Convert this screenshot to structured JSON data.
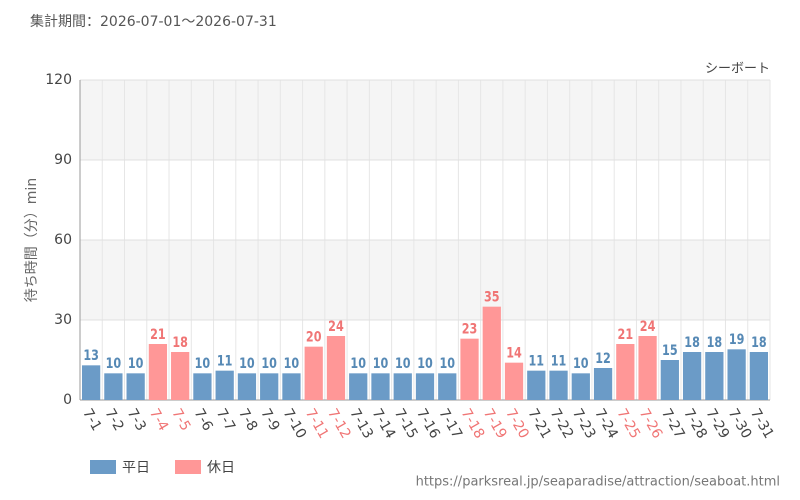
{
  "chart_data": {
    "type": "bar",
    "title": "集計期間：2026-07-01～2026-07-31",
    "subtitle": "シーボート",
    "ylabel": "待ち時間（分）min",
    "source": "https://parksreal.jp/seaparadise/attraction/seaboat.html",
    "categories": [
      "7-1",
      "7-2",
      "7-3",
      "7-4",
      "7-5",
      "7-6",
      "7-7",
      "7-8",
      "7-9",
      "7-10",
      "7-11",
      "7-12",
      "7-13",
      "7-14",
      "7-15",
      "7-16",
      "7-17",
      "7-18",
      "7-19",
      "7-20",
      "7-21",
      "7-22",
      "7-23",
      "7-24",
      "7-25",
      "7-26",
      "7-27",
      "7-28",
      "7-29",
      "7-30",
      "7-31"
    ],
    "series": [
      {
        "name": "平日",
        "color": "#6b9bc7",
        "label_color": "#5689b5",
        "values": [
          13,
          10,
          10,
          null,
          null,
          10,
          11,
          10,
          10,
          10,
          null,
          null,
          10,
          10,
          10,
          10,
          10,
          null,
          null,
          null,
          11,
          11,
          10,
          12,
          null,
          null,
          15,
          18,
          18,
          19,
          18
        ]
      },
      {
        "name": "休日",
        "color": "#ff9797",
        "label_color": "#f07575",
        "values": [
          null,
          null,
          null,
          21,
          18,
          null,
          null,
          null,
          null,
          null,
          20,
          24,
          null,
          null,
          null,
          null,
          null,
          23,
          35,
          14,
          null,
          null,
          null,
          null,
          21,
          24,
          null,
          null,
          null,
          null,
          null
        ]
      }
    ],
    "ylim": [
      0,
      120
    ],
    "yticks": [
      0,
      30,
      60,
      90,
      120
    ],
    "grid": true
  }
}
